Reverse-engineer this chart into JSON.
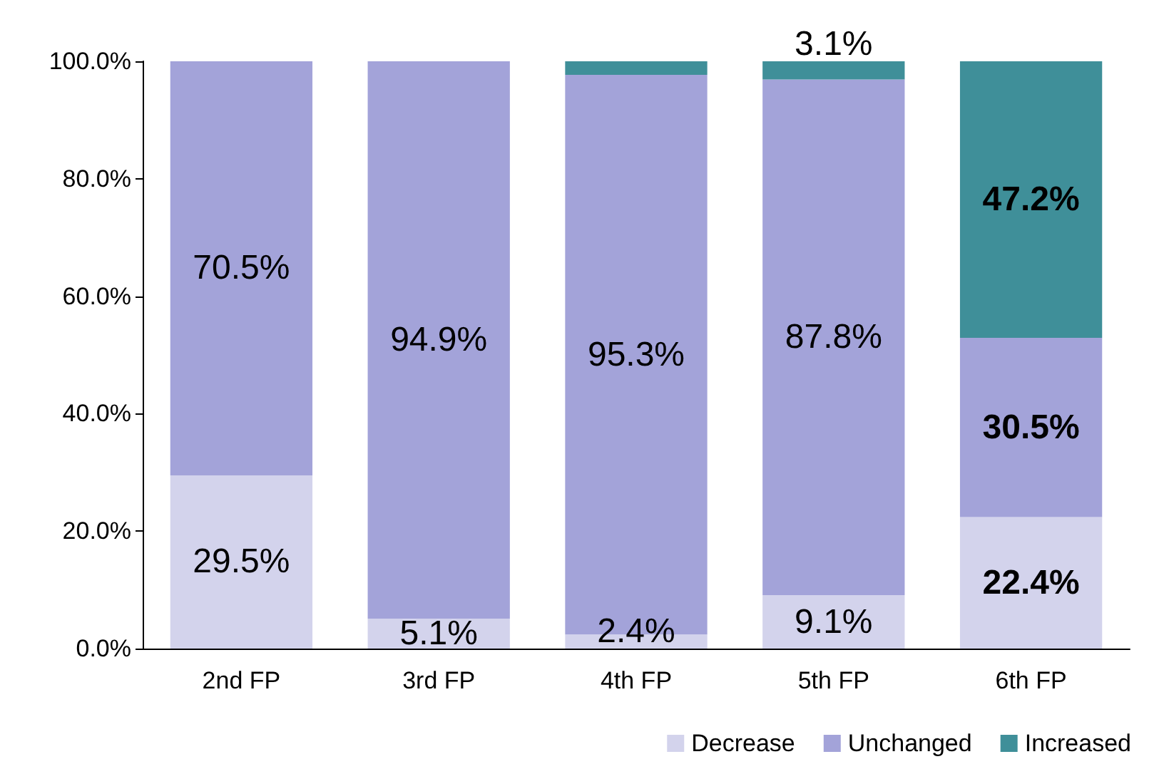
{
  "chart_data": {
    "type": "bar",
    "stacked": true,
    "categories": [
      "2nd FP",
      "3rd FP",
      "4th FP",
      "5th FP",
      "6th FP"
    ],
    "series": [
      {
        "name": "Decrease",
        "color": "#d3d3ec",
        "values": [
          29.5,
          5.1,
          2.4,
          9.1,
          22.4
        ],
        "value_labels": [
          "29.5%",
          "5.1%",
          "2.4%",
          "9.1%",
          "22.4%"
        ]
      },
      {
        "name": "Unchanged",
        "color": "#a3a3d9",
        "values": [
          70.5,
          94.9,
          95.3,
          87.8,
          30.5
        ],
        "value_labels": [
          "70.5%",
          "94.9%",
          "95.3%",
          "87.8%",
          "30.5%"
        ]
      },
      {
        "name": "Increased",
        "color": "#3f8f99",
        "values": [
          0,
          0,
          2.3,
          3.1,
          47.2
        ],
        "value_labels": [
          null,
          null,
          null,
          "3.1%",
          "47.2%"
        ]
      }
    ],
    "ylim": [
      0,
      100
    ],
    "yticks": [
      {
        "value": 0,
        "label": "0.0%"
      },
      {
        "value": 20,
        "label": "20.0%"
      },
      {
        "value": 40,
        "label": "40.0%"
      },
      {
        "value": 60,
        "label": "60.0%"
      },
      {
        "value": 80,
        "label": "80.0%"
      },
      {
        "value": 100,
        "label": "100.0%"
      }
    ],
    "grid": false,
    "legend": "bottom right"
  }
}
